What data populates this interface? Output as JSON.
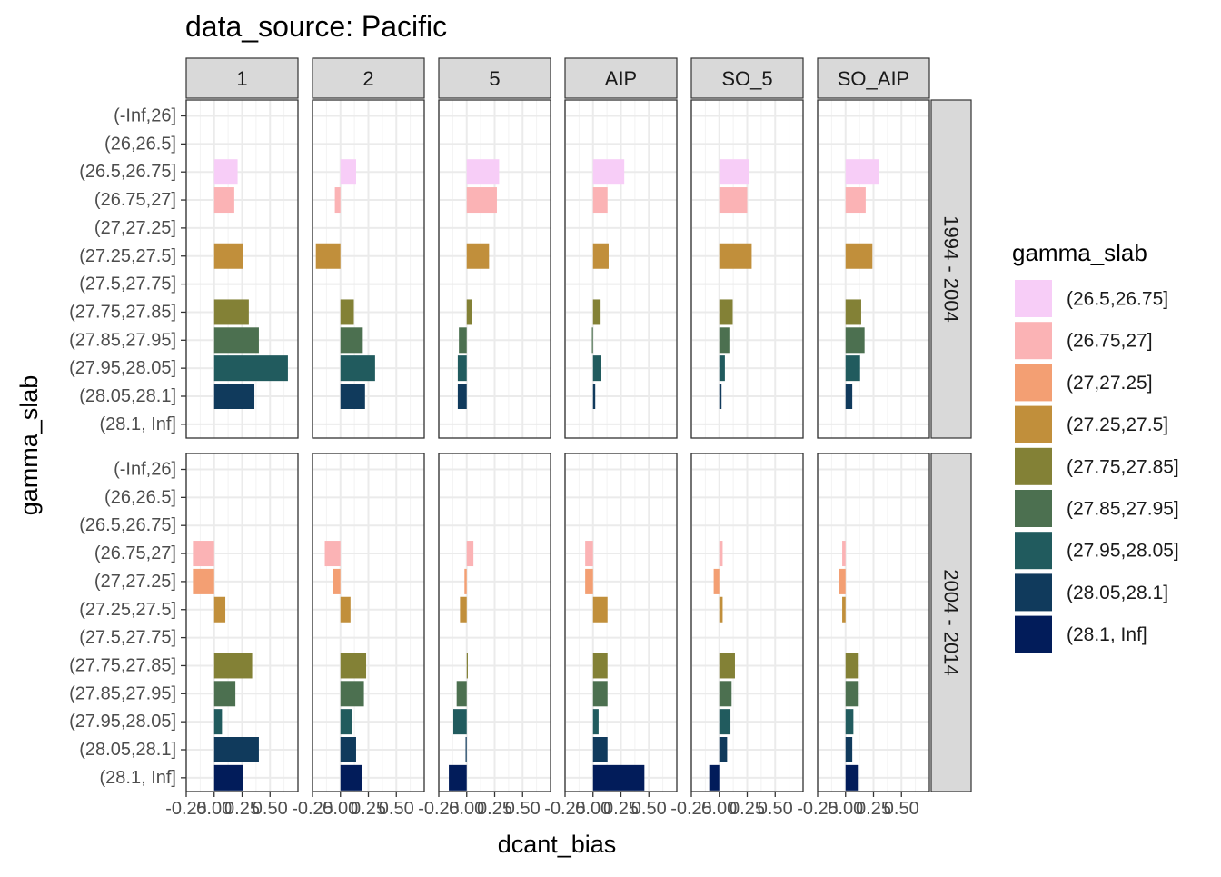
{
  "chart_data": {
    "type": "bar",
    "orientation": "horizontal",
    "title": "data_source: Pacific",
    "xlabel": "dcant_bias",
    "ylabel": "gamma_slab",
    "xlim": [
      -0.25,
      0.75
    ],
    "x_ticks": [
      "-0.25",
      "0.00",
      "0.25",
      "0.50"
    ],
    "grid": true,
    "legend_position": "right",
    "legend_title": "gamma_slab",
    "categories": [
      "(-Inf,26]",
      "(26,26.5]",
      "(26.5,26.75]",
      "(26.75,27]",
      "(27,27.25]",
      "(27.25,27.5]",
      "(27.5,27.75]",
      "(27.75,27.85]",
      "(27.85,27.95]",
      "(27.95,28.05]",
      "(28.05,28.1]",
      "(28.1, Inf]"
    ],
    "legend_entries": [
      "(26.5,26.75]",
      "(26.75,27]",
      "(27,27.25]",
      "(27.25,27.5]",
      "(27.75,27.85]",
      "(27.85,27.95]",
      "(27.95,28.05]",
      "(28.05,28.1]",
      "(28.1, Inf]"
    ],
    "colors": {
      "(26.5,26.75]": "#f7cdf7",
      "(26.75,27]": "#fbb3b5",
      "(27,27.25]": "#f39f73",
      "(27.25,27.5]": "#c18f3b",
      "(27.75,27.85]": "#838136",
      "(27.85,27.95]": "#4c7050",
      "(27.95,28.05]": "#215b5e",
      "(28.05,28.1]": "#103a5c",
      "(28.1, Inf]": "#021c5a"
    },
    "col_facets": [
      "1",
      "2",
      "5",
      "AIP",
      "SO_5",
      "SO_AIP"
    ],
    "row_facets": [
      "1994 - 2004",
      "2004 - 2014"
    ],
    "panels": [
      [
        [
          null,
          null,
          0.21,
          0.18,
          null,
          0.26,
          null,
          0.31,
          0.4,
          0.66,
          0.36,
          null
        ],
        [
          null,
          null,
          0.14,
          -0.05,
          null,
          -0.22,
          null,
          0.12,
          0.2,
          0.31,
          0.22,
          null
        ],
        [
          null,
          null,
          0.29,
          0.27,
          null,
          0.2,
          null,
          0.05,
          -0.07,
          -0.08,
          -0.08,
          null
        ],
        [
          null,
          null,
          0.28,
          0.13,
          null,
          0.14,
          null,
          0.06,
          -0.01,
          0.07,
          0.02,
          null
        ],
        [
          null,
          null,
          0.27,
          0.25,
          null,
          0.29,
          null,
          0.12,
          0.09,
          0.05,
          0.02,
          null
        ],
        [
          null,
          null,
          0.3,
          0.18,
          null,
          0.24,
          null,
          0.14,
          0.17,
          0.13,
          0.06,
          null
        ]
      ],
      [
        [
          null,
          null,
          null,
          -0.19,
          -0.19,
          0.1,
          null,
          0.34,
          0.19,
          0.07,
          0.4,
          0.26
        ],
        [
          null,
          null,
          null,
          -0.14,
          -0.07,
          0.09,
          null,
          0.23,
          0.21,
          0.1,
          0.14,
          0.19
        ],
        [
          null,
          null,
          null,
          0.06,
          -0.02,
          -0.06,
          null,
          0.01,
          -0.09,
          -0.12,
          -0.01,
          -0.16
        ],
        [
          null,
          null,
          null,
          -0.07,
          -0.07,
          0.13,
          null,
          0.13,
          0.13,
          0.05,
          0.13,
          0.46
        ],
        [
          null,
          null,
          null,
          0.03,
          -0.05,
          0.03,
          null,
          0.14,
          0.11,
          0.1,
          0.07,
          -0.09
        ],
        [
          null,
          null,
          null,
          -0.03,
          -0.06,
          -0.03,
          null,
          0.11,
          0.11,
          0.07,
          0.06,
          0.11
        ]
      ]
    ]
  }
}
